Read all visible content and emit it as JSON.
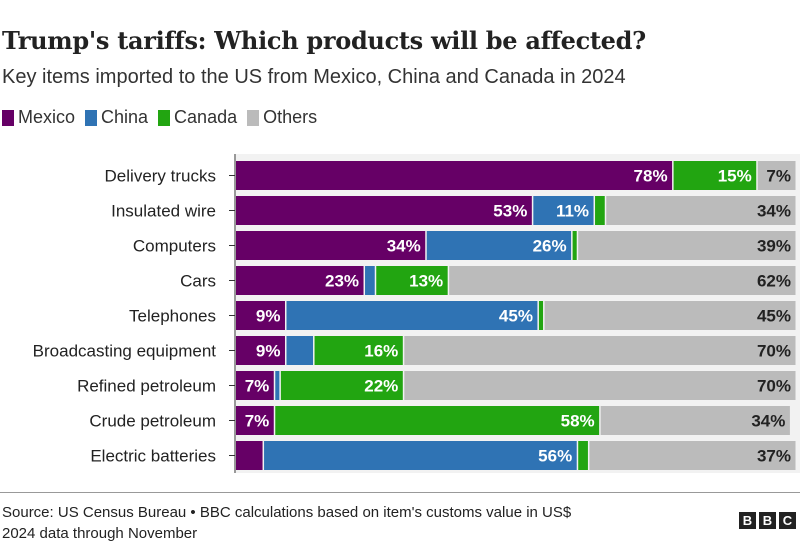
{
  "chart_data": {
    "type": "bar",
    "orientation": "horizontal",
    "stacked": true,
    "title": "Trump's tariffs: Which products will be affected?",
    "subtitle": "Key items imported to the US from Mexico, China and Canada in 2024",
    "categories": [
      "Delivery trucks",
      "Insulated wire",
      "Computers",
      "Cars",
      "Telephones",
      "Broadcasting equipment",
      "Refined petroleum",
      "Crude petroleum",
      "Electric batteries"
    ],
    "series": [
      {
        "name": "Mexico",
        "color": "#660066",
        "values": [
          78,
          53,
          34,
          23,
          9,
          9,
          7,
          7,
          5
        ]
      },
      {
        "name": "China",
        "color": "#2f73b4",
        "values": [
          0,
          11,
          26,
          2,
          45,
          5,
          1,
          0,
          56
        ]
      },
      {
        "name": "Canada",
        "color": "#22a511",
        "values": [
          15,
          2,
          1,
          13,
          1,
          16,
          22,
          58,
          2
        ]
      },
      {
        "name": "Others",
        "color": "#bbbbbb",
        "values": [
          7,
          34,
          39,
          62,
          45,
          70,
          70,
          34,
          37
        ]
      }
    ],
    "xlim": [
      0,
      100
    ],
    "unit": "%",
    "legend_position": "top-left",
    "grid": false
  },
  "footer": {
    "source": "Source: US Census Bureau • BBC calculations based on item's customs value in US$",
    "note": "2024 data through November",
    "logo": "BBC"
  }
}
